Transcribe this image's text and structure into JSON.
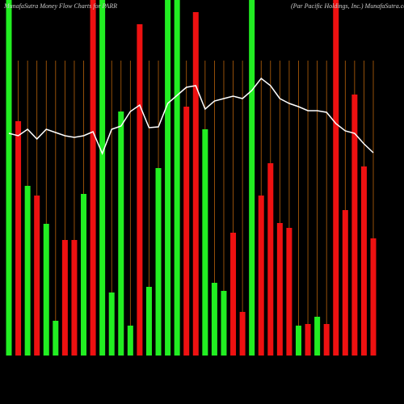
{
  "chart_data": {
    "type": "bar",
    "title": "MunafaSutra  Money Flow  Charts for PARR",
    "subtitle": "(Par Pacific Holdings, Inc.) MunafaSutra.com",
    "categories": [
      null,
      null,
      null,
      null,
      null,
      null,
      null,
      null,
      null,
      null,
      null,
      null,
      null,
      null,
      null,
      null,
      null,
      null,
      null,
      null,
      null,
      null,
      null,
      null,
      null,
      null,
      null,
      null,
      null,
      null,
      null,
      null,
      null,
      null,
      null,
      null,
      null,
      null,
      null,
      null
    ],
    "series": [
      {
        "name": "Money Flow",
        "colors": [
          "#22ee22",
          "#ee1111",
          "#22ee22",
          "#ee1111",
          "#22ee22",
          "#22ee22",
          "#ee1111",
          "#ee1111",
          "#22ee22",
          "#ee1111",
          "#22ee22",
          "#22ee22",
          "#22ee22",
          "#22ee22",
          "#ee1111",
          "#22ee22",
          "#22ee22",
          "#22ee22",
          "#22ee22",
          "#ee1111",
          "#ee1111",
          "#22ee22",
          "#22ee22",
          "#22ee22",
          "#ee1111",
          "#ee1111",
          "#22ee22",
          "#ee1111",
          "#ee1111",
          "#ee1111",
          "#ee1111",
          "#22ee22",
          "#ee1111",
          "#22ee22",
          "#ee1111",
          "#ee1111",
          "#ee1111",
          "#ee1111",
          "#ee1111",
          "#ee1111"
        ],
        "values": [
          440,
          290,
          210,
          198,
          163,
          43,
          143,
          143,
          200,
          440,
          440,
          78,
          302,
          37,
          410,
          85,
          232,
          440,
          440,
          308,
          425,
          280,
          90,
          80,
          152,
          54,
          440,
          198,
          238,
          164,
          158,
          37,
          39,
          48,
          39,
          440,
          180,
          323,
          234,
          145
        ]
      },
      {
        "name": "Price",
        "color": "#ffffff",
        "values": [
          275,
          272,
          280,
          268,
          280,
          276,
          272,
          270,
          272,
          277,
          250,
          280,
          284,
          302,
          310,
          282,
          283,
          312,
          322,
          332,
          334,
          305,
          315,
          318,
          321,
          318,
          328,
          343,
          334,
          318,
          312,
          308,
          303,
          303,
          301,
          287,
          278,
          275,
          262,
          251
        ]
      }
    ],
    "ylim": [
      0,
      440
    ],
    "grid": true,
    "grid_color": "#b8620a",
    "background": "#000000"
  }
}
